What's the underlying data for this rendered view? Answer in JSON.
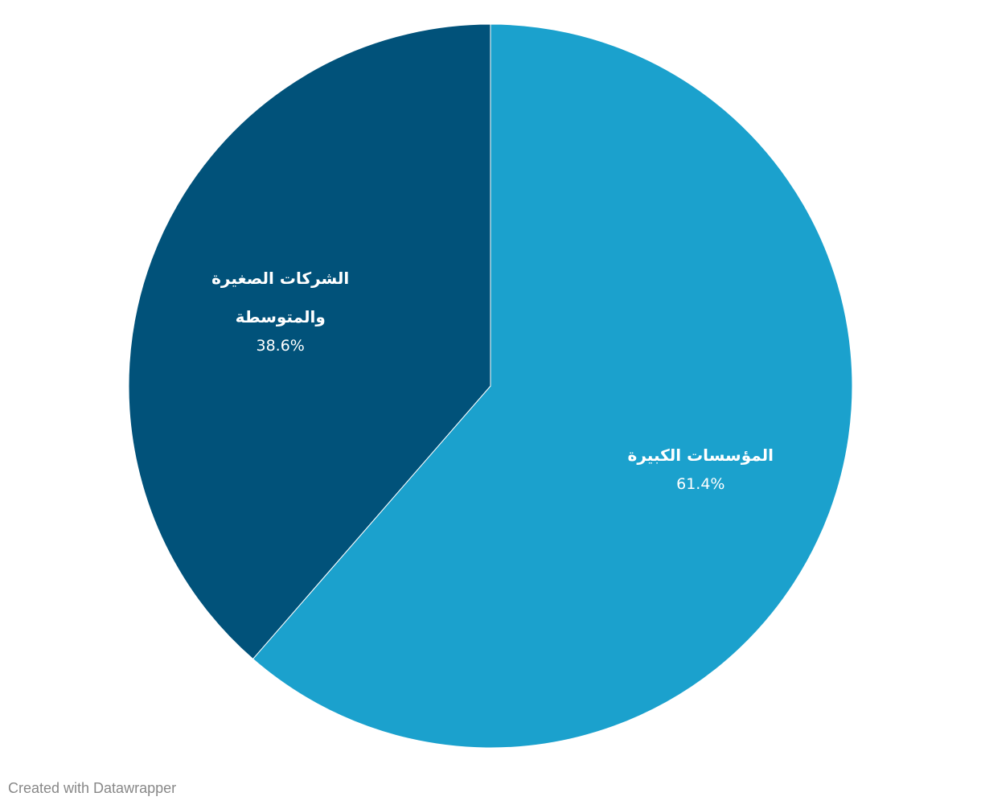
{
  "chart_data": {
    "type": "pie",
    "categories": [
      "المؤسسات الكبيرة",
      "الشركات الصغيرة والمتوسطة"
    ],
    "values": [
      61.4,
      38.6
    ],
    "value_labels": [
      "61.4%",
      "38.6%"
    ],
    "colors": [
      "#1ba1cd",
      "#01527a"
    ],
    "credit": "Created with Datawrapper"
  }
}
